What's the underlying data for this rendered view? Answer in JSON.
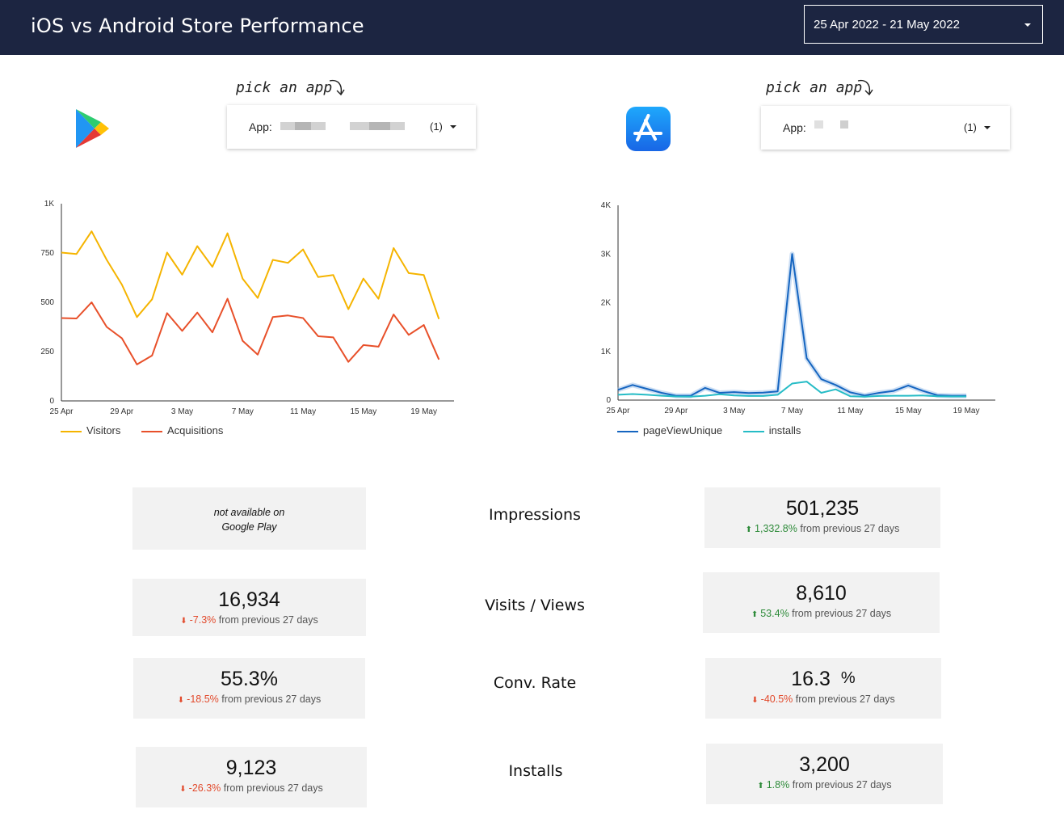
{
  "header": {
    "title": "iOS vs Android Store Performance",
    "date_range": "25 Apr 2022 - 21 May 2022"
  },
  "android": {
    "hint": "pick an app",
    "app_label": "App:",
    "app_count": "(1)",
    "icon": "google-play-icon"
  },
  "ios": {
    "hint": "pick an app",
    "app_label": "App:",
    "app_count": "(1)",
    "icon": "app-store-icon"
  },
  "chart_data": [
    {
      "type": "line",
      "x": [
        "25 Apr",
        "26 Apr",
        "27 Apr",
        "28 Apr",
        "29 Apr",
        "30 Apr",
        "1 May",
        "2 May",
        "3 May",
        "4 May",
        "5 May",
        "6 May",
        "7 May",
        "8 May",
        "9 May",
        "10 May",
        "11 May",
        "12 May",
        "13 May",
        "14 May",
        "15 May",
        "16 May",
        "17 May",
        "18 May",
        "19 May",
        "20 May",
        "21 May"
      ],
      "x_ticks": [
        "25 Apr",
        "29 Apr",
        "3 May",
        "7 May",
        "11 May",
        "15 May",
        "19 May"
      ],
      "y_ticks": [
        "0",
        "250",
        "500",
        "750",
        "1K"
      ],
      "ylim": [
        0,
        1000
      ],
      "series": [
        {
          "name": "Visitors",
          "color": "#f5b400",
          "values": [
            752,
            745,
            860,
            715,
            590,
            425,
            515,
            752,
            640,
            785,
            680,
            850,
            620,
            522,
            715,
            700,
            768,
            628,
            638,
            465,
            620,
            518,
            775,
            648,
            638,
            415,
            null
          ]
        },
        {
          "name": "Acquisitions",
          "color": "#e8502a",
          "values": [
            420,
            418,
            500,
            375,
            318,
            185,
            230,
            445,
            355,
            448,
            348,
            518,
            305,
            235,
            425,
            433,
            420,
            328,
            322,
            198,
            283,
            275,
            438,
            335,
            385,
            210,
            null
          ]
        }
      ],
      "legend": "bottom-left"
    },
    {
      "type": "line",
      "x": [
        "25 Apr",
        "26 Apr",
        "27 Apr",
        "28 Apr",
        "29 Apr",
        "30 Apr",
        "1 May",
        "2 May",
        "3 May",
        "4 May",
        "5 May",
        "6 May",
        "7 May",
        "8 May",
        "9 May",
        "10 May",
        "11 May",
        "12 May",
        "13 May",
        "14 May",
        "15 May",
        "16 May",
        "17 May",
        "18 May",
        "19 May",
        "20 May",
        "21 May"
      ],
      "x_ticks": [
        "25 Apr",
        "29 Apr",
        "3 May",
        "7 May",
        "11 May",
        "15 May",
        "19 May"
      ],
      "y_ticks": [
        "0",
        "1K",
        "2K",
        "3K",
        "4K"
      ],
      "ylim": [
        0,
        4000
      ],
      "series": [
        {
          "name": "pageViewUnique",
          "color": "#1565c0",
          "values": [
            210,
            310,
            230,
            150,
            90,
            90,
            250,
            150,
            165,
            145,
            155,
            180,
            3000,
            860,
            430,
            310,
            160,
            95,
            150,
            190,
            300,
            190,
            100,
            90,
            90,
            null,
            null
          ]
        },
        {
          "name": "installs",
          "color": "#26bcc6",
          "values": [
            110,
            125,
            110,
            90,
            75,
            70,
            90,
            120,
            95,
            85,
            85,
            110,
            340,
            380,
            150,
            220,
            80,
            70,
            85,
            90,
            90,
            95,
            80,
            75,
            75,
            null,
            null
          ]
        }
      ],
      "legend": "bottom-left"
    }
  ],
  "metrics": {
    "impressions": {
      "label": "Impressions",
      "android_na_1": "not available on",
      "android_na_2": "Google Play",
      "ios_value": "501,235",
      "ios_change": "1,332.8%",
      "ios_suffix": "from previous 27 days"
    },
    "visits": {
      "label": "Visits / Views",
      "android_value": "16,934",
      "android_change": "-7.3%",
      "android_suffix": "from previous 27 days",
      "ios_value": "8,610",
      "ios_change": "53.4%",
      "ios_suffix": "from previous 27 days"
    },
    "conv": {
      "label": "Conv. Rate",
      "android_value": "55.3%",
      "android_change": "-18.5%",
      "android_suffix": "from previous 27 days",
      "ios_value": "16.3",
      "ios_unit": "%",
      "ios_change": "-40.5%",
      "ios_suffix": "from previous 27 days"
    },
    "installs": {
      "label": "Installs",
      "android_value": "9,123",
      "android_change": "-26.3%",
      "android_suffix": "from previous 27 days",
      "ios_value": "3,200",
      "ios_change": "1.8%",
      "ios_suffix": "from previous 27 days"
    }
  }
}
